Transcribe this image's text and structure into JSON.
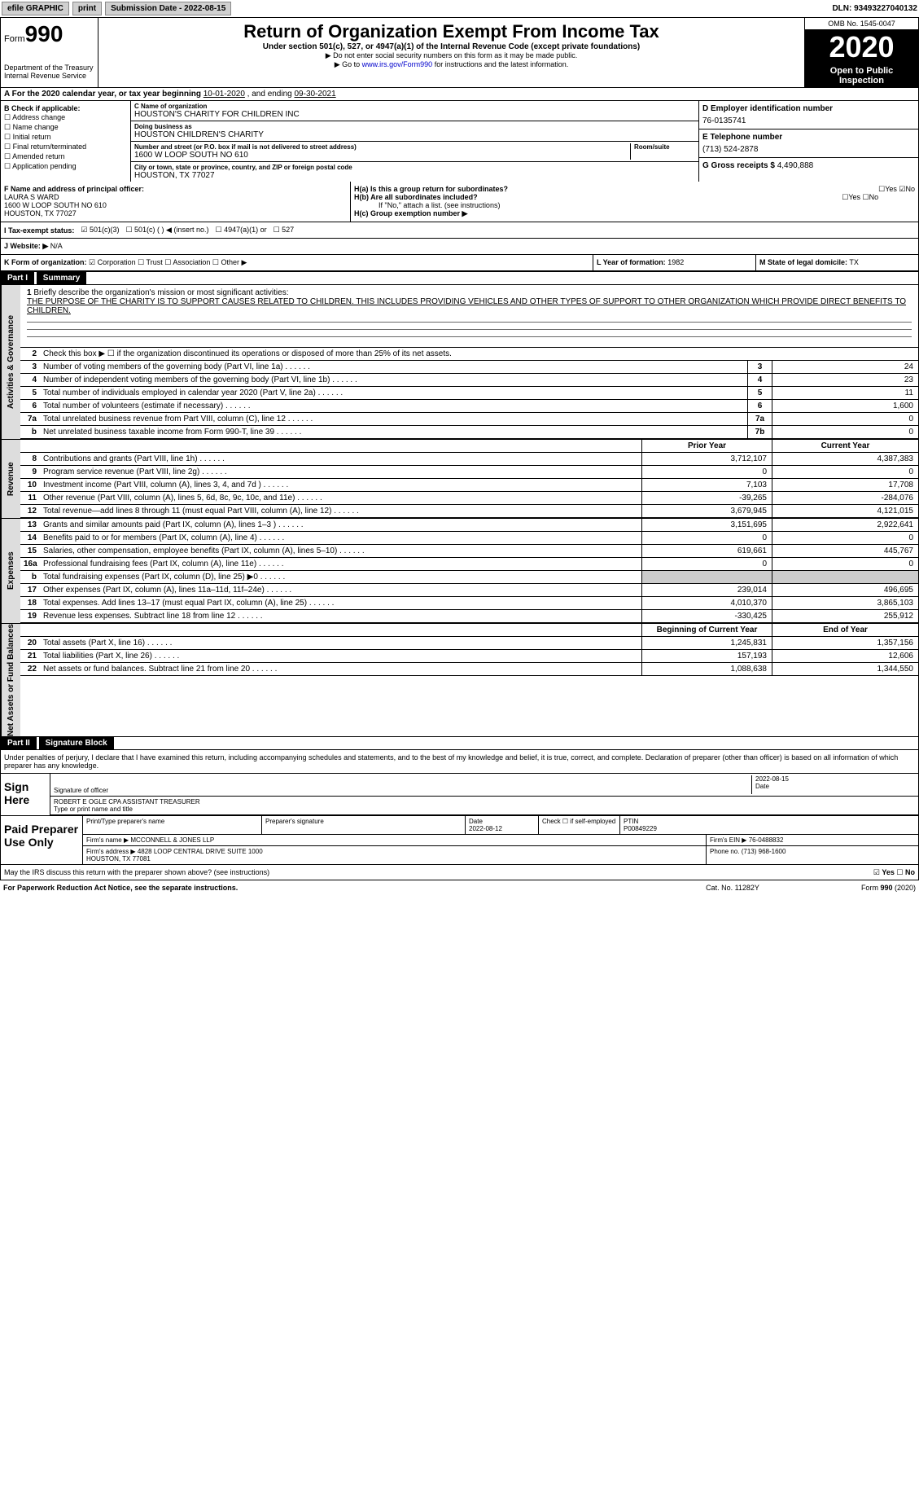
{
  "topbar": {
    "efile": "efile GRAPHIC",
    "print": "print",
    "subdate_label": "Submission Date -",
    "subdate": "2022-08-15",
    "dln_label": "DLN:",
    "dln": "93493227040132"
  },
  "header": {
    "form_label": "Form",
    "form_num": "990",
    "dept": "Department of the Treasury\nInternal Revenue Service",
    "title": "Return of Organization Exempt From Income Tax",
    "subtitle": "Under section 501(c), 527, or 4947(a)(1) of the Internal Revenue Code (except private foundations)",
    "note1": "▶ Do not enter social security numbers on this form as it may be made public.",
    "note2_pre": "▶ Go to ",
    "note2_link": "www.irs.gov/Form990",
    "note2_post": " for instructions and the latest information.",
    "omb": "OMB No. 1545-0047",
    "year": "2020",
    "open": "Open to Public Inspection"
  },
  "sectA": {
    "text_pre": "A For the 2020 calendar year, or tax year beginning ",
    "begin": "10-01-2020",
    "mid": " , and ending ",
    "end": "09-30-2021"
  },
  "colB": {
    "title": "B Check if applicable:",
    "items": [
      "Address change",
      "Name change",
      "Initial return",
      "Final return/terminated",
      "Amended return",
      "Application pending"
    ]
  },
  "colC": {
    "name_lbl": "C Name of organization",
    "name": "HOUSTON'S CHARITY FOR CHILDREN INC",
    "dba_lbl": "Doing business as",
    "dba": "HOUSTON CHILDREN'S CHARITY",
    "addr_lbl": "Number and street (or P.O. box if mail is not delivered to street address)",
    "room_lbl": "Room/suite",
    "addr": "1600 W LOOP SOUTH NO 610",
    "city_lbl": "City or town, state or province, country, and ZIP or foreign postal code",
    "city": "HOUSTON, TX  77027"
  },
  "colD": {
    "lbl": "D Employer identification number",
    "val": "76-0135741"
  },
  "colE": {
    "lbl": "E Telephone number",
    "val": "(713) 524-2878"
  },
  "colG": {
    "lbl": "G Gross receipts $",
    "val": "4,490,888"
  },
  "colF": {
    "lbl": "F Name and address of principal officer:",
    "name": "LAURA S WARD",
    "addr1": "1600 W LOOP SOUTH NO 610",
    "addr2": "HOUSTON, TX  77027"
  },
  "colH": {
    "ha": "H(a)  Is this a group return for subordinates?",
    "hb": "H(b)  Are all subordinates included?",
    "hb_note": "If \"No,\" attach a list. (see instructions)",
    "hc": "H(c)  Group exemption number ▶",
    "yes": "Yes",
    "no": "No"
  },
  "rowI": {
    "lbl": "I  Tax-exempt status:",
    "opts": [
      "501(c)(3)",
      "501(c) (  ) ◀ (insert no.)",
      "4947(a)(1) or",
      "527"
    ]
  },
  "rowJ": {
    "lbl": "J  Website: ▶",
    "val": "N/A"
  },
  "rowK": {
    "lbl": "K Form of organization:",
    "opts": [
      "Corporation",
      "Trust",
      "Association",
      "Other ▶"
    ],
    "l_lbl": "L Year of formation:",
    "l_val": "1982",
    "m_lbl": "M State of legal domicile:",
    "m_val": "TX"
  },
  "part1": {
    "hdr": "Part I",
    "title": "Summary"
  },
  "mission": {
    "num": "1",
    "lbl": "Briefly describe the organization's mission or most significant activities:",
    "txt": "THE PURPOSE OF THE CHARITY IS TO SUPPORT CAUSES RELATED TO CHILDREN. THIS INCLUDES PROVIDING VEHICLES AND OTHER TYPES OF SUPPORT TO OTHER ORGANIZATION WHICH PROVIDE DIRECT BENEFITS TO CHILDREN."
  },
  "line2": {
    "num": "2",
    "txt": "Check this box ▶ ☐ if the organization discontinued its operations or disposed of more than 25% of its net assets."
  },
  "gov_lines": [
    {
      "n": "3",
      "t": "Number of voting members of the governing body (Part VI, line 1a)",
      "b": "3",
      "v": "24"
    },
    {
      "n": "4",
      "t": "Number of independent voting members of the governing body (Part VI, line 1b)",
      "b": "4",
      "v": "23"
    },
    {
      "n": "5",
      "t": "Total number of individuals employed in calendar year 2020 (Part V, line 2a)",
      "b": "5",
      "v": "11"
    },
    {
      "n": "6",
      "t": "Total number of volunteers (estimate if necessary)",
      "b": "6",
      "v": "1,600"
    },
    {
      "n": "7a",
      "t": "Total unrelated business revenue from Part VIII, column (C), line 12",
      "b": "7a",
      "v": "0"
    },
    {
      "n": "b",
      "t": "Net unrelated business taxable income from Form 990-T, line 39",
      "b": "7b",
      "v": "0"
    }
  ],
  "colhdrs": {
    "prior": "Prior Year",
    "current": "Current Year",
    "boy": "Beginning of Current Year",
    "eoy": "End of Year"
  },
  "rev_lines": [
    {
      "n": "8",
      "t": "Contributions and grants (Part VIII, line 1h)",
      "p": "3,712,107",
      "c": "4,387,383"
    },
    {
      "n": "9",
      "t": "Program service revenue (Part VIII, line 2g)",
      "p": "0",
      "c": "0"
    },
    {
      "n": "10",
      "t": "Investment income (Part VIII, column (A), lines 3, 4, and 7d )",
      "p": "7,103",
      "c": "17,708"
    },
    {
      "n": "11",
      "t": "Other revenue (Part VIII, column (A), lines 5, 6d, 8c, 9c, 10c, and 11e)",
      "p": "-39,265",
      "c": "-284,076"
    },
    {
      "n": "12",
      "t": "Total revenue—add lines 8 through 11 (must equal Part VIII, column (A), line 12)",
      "p": "3,679,945",
      "c": "4,121,015"
    }
  ],
  "exp_lines": [
    {
      "n": "13",
      "t": "Grants and similar amounts paid (Part IX, column (A), lines 1–3 )",
      "p": "3,151,695",
      "c": "2,922,641"
    },
    {
      "n": "14",
      "t": "Benefits paid to or for members (Part IX, column (A), line 4)",
      "p": "0",
      "c": "0"
    },
    {
      "n": "15",
      "t": "Salaries, other compensation, employee benefits (Part IX, column (A), lines 5–10)",
      "p": "619,661",
      "c": "445,767"
    },
    {
      "n": "16a",
      "t": "Professional fundraising fees (Part IX, column (A), line 11e)",
      "p": "0",
      "c": "0"
    },
    {
      "n": "b",
      "t": "Total fundraising expenses (Part IX, column (D), line 25) ▶0",
      "p": "",
      "c": "",
      "shade": true
    },
    {
      "n": "17",
      "t": "Other expenses (Part IX, column (A), lines 11a–11d, 11f–24e)",
      "p": "239,014",
      "c": "496,695"
    },
    {
      "n": "18",
      "t": "Total expenses. Add lines 13–17 (must equal Part IX, column (A), line 25)",
      "p": "4,010,370",
      "c": "3,865,103"
    },
    {
      "n": "19",
      "t": "Revenue less expenses. Subtract line 18 from line 12",
      "p": "-330,425",
      "c": "255,912"
    }
  ],
  "net_lines": [
    {
      "n": "20",
      "t": "Total assets (Part X, line 16)",
      "p": "1,245,831",
      "c": "1,357,156"
    },
    {
      "n": "21",
      "t": "Total liabilities (Part X, line 26)",
      "p": "157,193",
      "c": "12,606"
    },
    {
      "n": "22",
      "t": "Net assets or fund balances. Subtract line 21 from line 20",
      "p": "1,088,638",
      "c": "1,344,550"
    }
  ],
  "vtabs": {
    "gov": "Activities & Governance",
    "rev": "Revenue",
    "exp": "Expenses",
    "net": "Net Assets or Fund Balances"
  },
  "part2": {
    "hdr": "Part II",
    "title": "Signature Block"
  },
  "sig": {
    "penalty": "Under penalties of perjury, I declare that I have examined this return, including accompanying schedules and statements, and to the best of my knowledge and belief, it is true, correct, and complete. Declaration of preparer (other than officer) is based on all information of which preparer has any knowledge.",
    "sign_here": "Sign Here",
    "sig_officer": "Signature of officer",
    "date": "Date",
    "sig_date": "2022-08-15",
    "name": "ROBERT E OGLE CPA  ASSISTANT TREASURER",
    "name_lbl": "Type or print name and title"
  },
  "paid": {
    "title": "Paid Preparer Use Only",
    "h1": "Print/Type preparer's name",
    "h2": "Preparer's signature",
    "h3": "Date",
    "h3v": "2022-08-12",
    "h4": "Check ☐ if self-employed",
    "h5": "PTIN",
    "h5v": "P00849229",
    "firm_lbl": "Firm's name    ▶",
    "firm": "MCCONNELL & JONES LLP",
    "ein_lbl": "Firm's EIN ▶",
    "ein": "76-0488832",
    "addr_lbl": "Firm's address ▶",
    "addr": "4828 LOOP CENTRAL DRIVE SUITE 1000\nHOUSTON, TX  77081",
    "phone_lbl": "Phone no.",
    "phone": "(713) 968-1600"
  },
  "discuss": {
    "txt": "May the IRS discuss this return with the preparer shown above? (see instructions)",
    "yes": "Yes",
    "no": "No"
  },
  "footer": {
    "f1": "For Paperwork Reduction Act Notice, see the separate instructions.",
    "f2": "Cat. No. 11282Y",
    "f3": "Form 990 (2020)"
  }
}
